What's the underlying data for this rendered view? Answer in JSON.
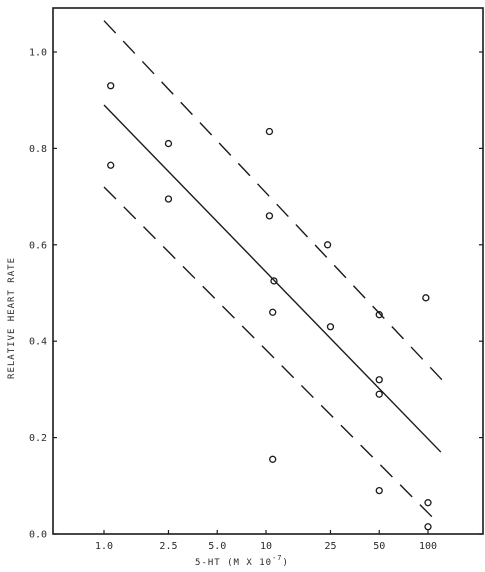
{
  "chart_data": {
    "type": "scatter",
    "xlabel": "5-HT (M X 10",
    "xlabel_exp": "-7",
    "xlabel_close": ")",
    "ylabel": "RELATIVE HEART RATE",
    "x_scale": "log",
    "xlim": [
      0.5,
      200
    ],
    "ylim": [
      0.0,
      1.1
    ],
    "x_ticks": [
      1.0,
      2.5,
      5.0,
      10,
      25,
      50,
      100
    ],
    "x_tick_labels": [
      "1.0",
      "2.5",
      "5.0",
      "10",
      "25",
      "50",
      "100"
    ],
    "y_ticks": [
      0.0,
      0.2,
      0.4,
      0.6,
      0.8,
      1.0
    ],
    "y_tick_labels": [
      "0.0",
      "0.2",
      "0.4",
      "0.6",
      "0.8",
      "1.0"
    ],
    "grid": false,
    "points": [
      {
        "x": 1.1,
        "y": 0.93
      },
      {
        "x": 1.1,
        "y": 0.765
      },
      {
        "x": 2.5,
        "y": 0.81
      },
      {
        "x": 2.5,
        "y": 0.695
      },
      {
        "x": 10.5,
        "y": 0.835
      },
      {
        "x": 10.5,
        "y": 0.66
      },
      {
        "x": 11.2,
        "y": 0.525
      },
      {
        "x": 11.0,
        "y": 0.46
      },
      {
        "x": 11.0,
        "y": 0.155
      },
      {
        "x": 24.0,
        "y": 0.6
      },
      {
        "x": 25.0,
        "y": 0.43
      },
      {
        "x": 50.0,
        "y": 0.455
      },
      {
        "x": 50.0,
        "y": 0.32
      },
      {
        "x": 50.0,
        "y": 0.29
      },
      {
        "x": 50.0,
        "y": 0.09
      },
      {
        "x": 97.0,
        "y": 0.49
      },
      {
        "x": 100.0,
        "y": 0.065
      },
      {
        "x": 100.0,
        "y": 0.015
      }
    ],
    "regression_line": {
      "x": [
        1.0,
        120
      ],
      "y": [
        0.89,
        0.17
      ]
    },
    "confidence_bands": [
      {
        "x": [
          1.0,
          130
        ],
        "y": [
          1.065,
          0.31
        ]
      },
      {
        "x": [
          1.0,
          110
        ],
        "y": [
          0.72,
          0.03
        ]
      }
    ]
  }
}
